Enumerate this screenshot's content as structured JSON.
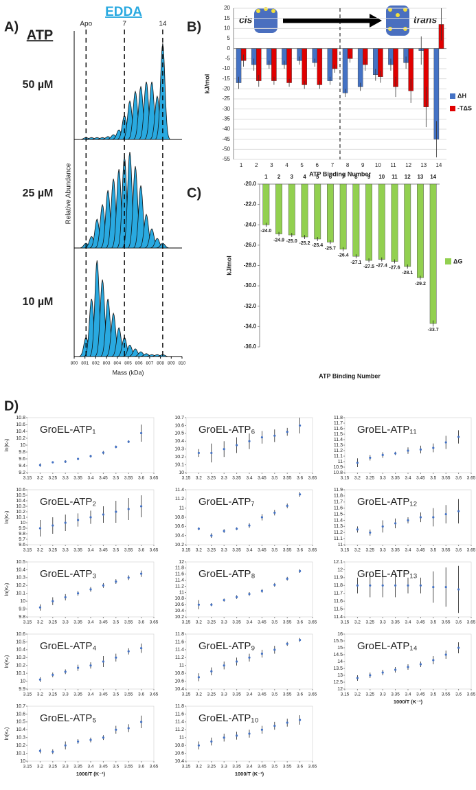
{
  "chart_data": [
    {
      "type": "mass_spectra",
      "panel_label": "A)",
      "title": "EDDA",
      "row_header": "ATP",
      "y_label": "Relative Abundance",
      "x_label": "Mass (kDa)",
      "xlim": [
        800,
        810
      ],
      "xticks": [
        800,
        801,
        802,
        803,
        804,
        805,
        806,
        807,
        808,
        809,
        810
      ],
      "ylim": [
        0,
        100
      ],
      "markers": [
        {
          "label": "Apo",
          "value": 801.1
        },
        {
          "label": "7",
          "value": 804.66
        },
        {
          "label": "14",
          "value": 808.21
        }
      ],
      "series": [
        {
          "name": "50 µM",
          "color": "#29a9e0",
          "x": [
            801.1,
            801.61,
            802.12,
            802.62,
            803.13,
            803.64,
            804.15,
            804.66,
            805.16,
            805.67,
            806.18,
            806.69,
            807.2,
            807.7,
            808.21
          ],
          "values": [
            2,
            2,
            2,
            2,
            3,
            5,
            10,
            25,
            40,
            50,
            55,
            60,
            60,
            45,
            100
          ]
        },
        {
          "name": "25 µM",
          "color": "#29a9e0",
          "x": [
            801.1,
            801.61,
            802.12,
            802.62,
            803.13,
            803.64,
            804.15,
            804.66,
            805.16,
            805.67,
            806.18,
            806.69,
            807.2,
            807.7,
            808.21
          ],
          "values": [
            5,
            12,
            30,
            45,
            60,
            72,
            82,
            95,
            100,
            85,
            65,
            35,
            20,
            10,
            5
          ]
        },
        {
          "name": "10 µM",
          "color": "#29a9e0",
          "x": [
            801.1,
            801.61,
            802.12,
            802.62,
            803.13,
            803.64,
            804.15,
            804.66,
            805.16,
            805.67,
            806.18,
            806.69,
            807.2,
            807.7,
            808.21
          ],
          "values": [
            20,
            60,
            100,
            80,
            60,
            45,
            30,
            20,
            12,
            8,
            5,
            3,
            2,
            2,
            2
          ]
        }
      ]
    },
    {
      "type": "bar",
      "panel_label": "B)",
      "x_label": "ATP Binding Number",
      "y_label": "kJ/mol",
      "annotations": [
        "cis",
        "trans"
      ],
      "categories": [
        "1",
        "2",
        "3",
        "4",
        "5",
        "6",
        "7",
        "8",
        "9",
        "10",
        "11",
        "12",
        "13",
        "14"
      ],
      "ylim": [
        -55,
        20
      ],
      "yticks": [
        -55,
        -50,
        -45,
        -40,
        -35,
        -30,
        -25,
        -20,
        -15,
        -10,
        -5,
        0,
        5,
        10,
        15,
        20
      ],
      "grid": true,
      "series": [
        {
          "name": "ΔH",
          "color": "#4472c4",
          "values": [
            -17,
            -8,
            -8,
            -8,
            -6,
            -7,
            -16,
            -22,
            -19,
            -13,
            -8,
            -7,
            -1,
            -45
          ],
          "errors": [
            3,
            3,
            2,
            2,
            2,
            2,
            2,
            2,
            2,
            3,
            3,
            3,
            7,
            9
          ]
        },
        {
          "name": "-TΔS",
          "color": "#e00000",
          "values": [
            -6,
            -16,
            -16,
            -17,
            -18,
            -18,
            -10,
            -5,
            -8,
            -14,
            -19,
            -21,
            -29,
            12
          ],
          "errors": [
            3,
            3,
            2,
            2,
            2,
            2,
            2,
            2,
            3,
            3,
            5,
            6,
            10,
            8
          ]
        }
      ]
    },
    {
      "type": "hanging_bar",
      "panel_label": "C)",
      "x_label": "ATP Binding Number",
      "y_label": "kJ/mol",
      "categories": [
        "1",
        "2",
        "3",
        "4",
        "5",
        "6",
        "7",
        "8",
        "9",
        "10",
        "11",
        "12",
        "13",
        "14"
      ],
      "ylim": [
        -36,
        -20
      ],
      "yticks": [
        {
          "value": -20,
          "label": "-20.0"
        },
        {
          "value": -22,
          "label": "-22.0"
        },
        {
          "value": -24,
          "label": "-24.0"
        },
        {
          "value": -26,
          "label": "-26.0"
        },
        {
          "value": -28,
          "label": "-28.0"
        },
        {
          "value": -30,
          "label": "-30.0"
        },
        {
          "value": -32,
          "label": "-32.0"
        },
        {
          "value": -34,
          "label": "-34.0"
        },
        {
          "value": -36,
          "label": "-36.0"
        }
      ],
      "series": [
        {
          "name": "ΔG",
          "color": "#92d050",
          "values": [
            -24.0,
            -24.9,
            -25.0,
            -25.2,
            -25.4,
            -25.7,
            -26.4,
            -27.1,
            -27.5,
            -27.4,
            -27.6,
            -28.1,
            -29.2,
            -33.7
          ],
          "value_labels": [
            "-24.0",
            "-24.9",
            "-25.0",
            "-25.2",
            "-25.4",
            "-25.7",
            "-26.4",
            "-27.1",
            "-27.5",
            "-27.4",
            "-27.6",
            "-28.1",
            "-29.2",
            "-33.7"
          ],
          "errors": [
            0.2,
            0.2,
            0.2,
            0.2,
            0.2,
            0.2,
            0.2,
            0.2,
            0.2,
            0.2,
            0.2,
            0.2,
            0.2,
            0.3
          ]
        }
      ]
    },
    {
      "type": "small_multiples",
      "panel_label": "D)",
      "x_label": "1000/T (K⁻¹)",
      "y_label": "ln(Kₙ)",
      "xlim": [
        3.15,
        3.65
      ],
      "xticks": [
        3.15,
        3.2,
        3.25,
        3.3,
        3.35,
        3.4,
        3.45,
        3.5,
        3.55,
        3.6,
        3.65
      ],
      "color": "#4472c4",
      "panels": [
        {
          "title": "GroEL-ATP₁",
          "ylim": [
            9.2,
            10.8
          ],
          "yticks": [
            9.2,
            9.4,
            9.6,
            9.8,
            10,
            10.2,
            10.4,
            10.6,
            10.8
          ],
          "x": [
            3.2,
            3.25,
            3.3,
            3.35,
            3.4,
            3.45,
            3.5,
            3.55,
            3.6
          ],
          "values": [
            9.42,
            9.5,
            9.52,
            9.6,
            9.68,
            9.78,
            9.95,
            10.1,
            10.35
          ],
          "errors": [
            0.05,
            0.02,
            0.04,
            0.03,
            0.04,
            0.05,
            0.04,
            0.04,
            0.25
          ]
        },
        {
          "title": "GroEL-ATP₂",
          "ylim": [
            9.6,
            10.6
          ],
          "yticks": [
            9.6,
            9.7,
            9.8,
            9.9,
            10,
            10.1,
            10.2,
            10.3,
            10.4,
            10.5,
            10.6
          ],
          "x": [
            3.2,
            3.25,
            3.3,
            3.35,
            3.4,
            3.45,
            3.5,
            3.55,
            3.6
          ],
          "values": [
            9.9,
            9.95,
            10.0,
            10.05,
            10.1,
            10.15,
            10.2,
            10.25,
            10.3
          ],
          "errors": [
            0.15,
            0.15,
            0.15,
            0.12,
            0.12,
            0.15,
            0.2,
            0.2,
            0.2
          ]
        },
        {
          "title": "GroEL-ATP₃",
          "ylim": [
            9.8,
            10.5
          ],
          "yticks": [
            9.8,
            9.9,
            10,
            10.1,
            10.2,
            10.3,
            10.4,
            10.5
          ],
          "x": [
            3.2,
            3.25,
            3.3,
            3.35,
            3.4,
            3.45,
            3.5,
            3.55,
            3.6
          ],
          "values": [
            9.92,
            10.0,
            10.05,
            10.1,
            10.15,
            10.2,
            10.25,
            10.3,
            10.35
          ],
          "errors": [
            0.04,
            0.05,
            0.04,
            0.03,
            0.03,
            0.03,
            0.03,
            0.03,
            0.04
          ]
        },
        {
          "title": "GroEL-ATP₄",
          "ylim": [
            9.9,
            10.6
          ],
          "yticks": [
            9.9,
            10,
            10.1,
            10.2,
            10.3,
            10.4,
            10.5,
            10.6
          ],
          "x": [
            3.2,
            3.25,
            3.3,
            3.35,
            3.4,
            3.45,
            3.5,
            3.55,
            3.6
          ],
          "values": [
            10.02,
            10.08,
            10.12,
            10.17,
            10.2,
            10.25,
            10.3,
            10.38,
            10.42
          ],
          "errors": [
            0.03,
            0.03,
            0.03,
            0.04,
            0.04,
            0.07,
            0.05,
            0.04,
            0.06
          ]
        },
        {
          "title": "GroEL-ATP₅",
          "ylim": [
            10,
            10.7
          ],
          "yticks": [
            10,
            10.1,
            10.2,
            10.3,
            10.4,
            10.5,
            10.6,
            10.7
          ],
          "x": [
            3.2,
            3.25,
            3.3,
            3.35,
            3.4,
            3.45,
            3.5,
            3.55,
            3.6
          ],
          "values": [
            10.13,
            10.12,
            10.2,
            10.25,
            10.27,
            10.3,
            10.4,
            10.42,
            10.5
          ],
          "errors": [
            0.03,
            0.03,
            0.05,
            0.03,
            0.03,
            0.03,
            0.05,
            0.05,
            0.08
          ]
        },
        {
          "title": "GroEL-ATP₆",
          "ylim": [
            10,
            10.7
          ],
          "yticks": [
            10,
            10.1,
            10.2,
            10.3,
            10.4,
            10.5,
            10.6,
            10.7
          ],
          "x": [
            3.2,
            3.25,
            3.3,
            3.35,
            3.4,
            3.45,
            3.5,
            3.55,
            3.6
          ],
          "values": [
            10.25,
            10.25,
            10.3,
            10.35,
            10.4,
            10.45,
            10.47,
            10.52,
            10.6
          ],
          "errors": [
            0.05,
            0.12,
            0.1,
            0.1,
            0.1,
            0.08,
            0.08,
            0.05,
            0.1
          ]
        },
        {
          "title": "GroEL-ATP₇",
          "ylim": [
            10.2,
            11.4
          ],
          "yticks": [
            10.2,
            10.4,
            10.6,
            10.8,
            11,
            11.2,
            11.4
          ],
          "x": [
            3.2,
            3.25,
            3.3,
            3.35,
            3.4,
            3.45,
            3.5,
            3.55,
            3.6
          ],
          "values": [
            10.55,
            10.4,
            10.5,
            10.55,
            10.62,
            10.8,
            10.9,
            11.05,
            11.3
          ],
          "errors": [
            0.03,
            0.05,
            0.04,
            0.03,
            0.05,
            0.07,
            0.06,
            0.05,
            0.05
          ]
        },
        {
          "title": "GroEL-ATP₈",
          "ylim": [
            10.2,
            12
          ],
          "yticks": [
            10.2,
            10.4,
            10.6,
            10.8,
            11,
            11.2,
            11.4,
            11.6,
            11.8,
            12
          ],
          "x": [
            3.2,
            3.25,
            3.3,
            3.35,
            3.4,
            3.45,
            3.5,
            3.55,
            3.6
          ],
          "values": [
            10.6,
            10.6,
            10.75,
            10.85,
            10.95,
            11.05,
            11.25,
            11.45,
            11.7
          ],
          "errors": [
            0.15,
            0.05,
            0.05,
            0.06,
            0.06,
            0.06,
            0.06,
            0.06,
            0.06
          ]
        },
        {
          "title": "GroEL-ATP₉",
          "ylim": [
            10.4,
            11.8
          ],
          "yticks": [
            10.4,
            10.6,
            10.8,
            11,
            11.2,
            11.4,
            11.6,
            11.8
          ],
          "x": [
            3.2,
            3.25,
            3.3,
            3.35,
            3.4,
            3.45,
            3.5,
            3.55,
            3.6
          ],
          "values": [
            10.7,
            10.85,
            11.0,
            11.1,
            11.2,
            11.3,
            11.4,
            11.55,
            11.65
          ],
          "errors": [
            0.1,
            0.1,
            0.1,
            0.1,
            0.1,
            0.1,
            0.1,
            0.05,
            0.05
          ]
        },
        {
          "title": "GroEL-ATP₁₀",
          "ylim": [
            10.4,
            11.8
          ],
          "yticks": [
            10.4,
            10.6,
            10.8,
            11,
            11.2,
            11.4,
            11.6,
            11.8
          ],
          "x": [
            3.2,
            3.25,
            3.3,
            3.35,
            3.4,
            3.45,
            3.5,
            3.55,
            3.6
          ],
          "values": [
            10.8,
            10.9,
            11.0,
            11.05,
            11.1,
            11.2,
            11.3,
            11.38,
            11.45
          ],
          "errors": [
            0.1,
            0.1,
            0.1,
            0.1,
            0.1,
            0.1,
            0.1,
            0.1,
            0.12
          ]
        },
        {
          "title": "GroEL-ATP₁₁",
          "ylim": [
            10.8,
            11.8
          ],
          "yticks": [
            10.8,
            10.9,
            11,
            11.1,
            11.2,
            11.3,
            11.4,
            11.5,
            11.6,
            11.7,
            11.8
          ],
          "x": [
            3.2,
            3.25,
            3.3,
            3.35,
            3.4,
            3.45,
            3.5,
            3.55,
            3.6
          ],
          "values": [
            10.98,
            11.07,
            11.12,
            11.15,
            11.2,
            11.22,
            11.25,
            11.35,
            11.45
          ],
          "errors": [
            0.08,
            0.05,
            0.05,
            0.03,
            0.06,
            0.07,
            0.08,
            0.12,
            0.12
          ]
        },
        {
          "title": "GroEL-ATP₁₂",
          "ylim": [
            11,
            11.9
          ],
          "yticks": [
            11,
            11.1,
            11.2,
            11.3,
            11.4,
            11.5,
            11.6,
            11.7,
            11.8,
            11.9
          ],
          "x": [
            3.2,
            3.25,
            3.3,
            3.35,
            3.4,
            3.45,
            3.5,
            3.55,
            3.6
          ],
          "values": [
            11.25,
            11.2,
            11.3,
            11.35,
            11.4,
            11.45,
            11.45,
            11.5,
            11.55
          ],
          "errors": [
            0.05,
            0.05,
            0.1,
            0.08,
            0.05,
            0.08,
            0.15,
            0.15,
            0.2
          ]
        },
        {
          "title": "GroEL-ATP₁₃",
          "ylim": [
            11.4,
            12.1
          ],
          "yticks": [
            11.4,
            11.5,
            11.6,
            11.7,
            11.8,
            11.9,
            12,
            12.1
          ],
          "x": [
            3.2,
            3.25,
            3.3,
            3.35,
            3.4,
            3.45,
            3.5,
            3.55,
            3.6
          ],
          "values": [
            11.8,
            11.8,
            11.8,
            11.8,
            11.8,
            11.8,
            11.78,
            11.78,
            11.75
          ],
          "errors": [
            0.1,
            0.15,
            0.15,
            0.15,
            0.1,
            0.1,
            0.2,
            0.25,
            0.3
          ]
        },
        {
          "title": "GroEL-ATP₁₄",
          "ylim": [
            12,
            16
          ],
          "yticks": [
            12,
            12.5,
            13,
            13.5,
            14,
            14.5,
            15,
            15.5,
            16
          ],
          "x": [
            3.2,
            3.25,
            3.3,
            3.35,
            3.4,
            3.45,
            3.5,
            3.55,
            3.6
          ],
          "values": [
            12.8,
            13.0,
            13.2,
            13.4,
            13.6,
            13.8,
            14.1,
            14.5,
            15.0
          ],
          "errors": [
            0.2,
            0.2,
            0.2,
            0.2,
            0.2,
            0.2,
            0.3,
            0.3,
            0.4
          ]
        }
      ]
    }
  ]
}
